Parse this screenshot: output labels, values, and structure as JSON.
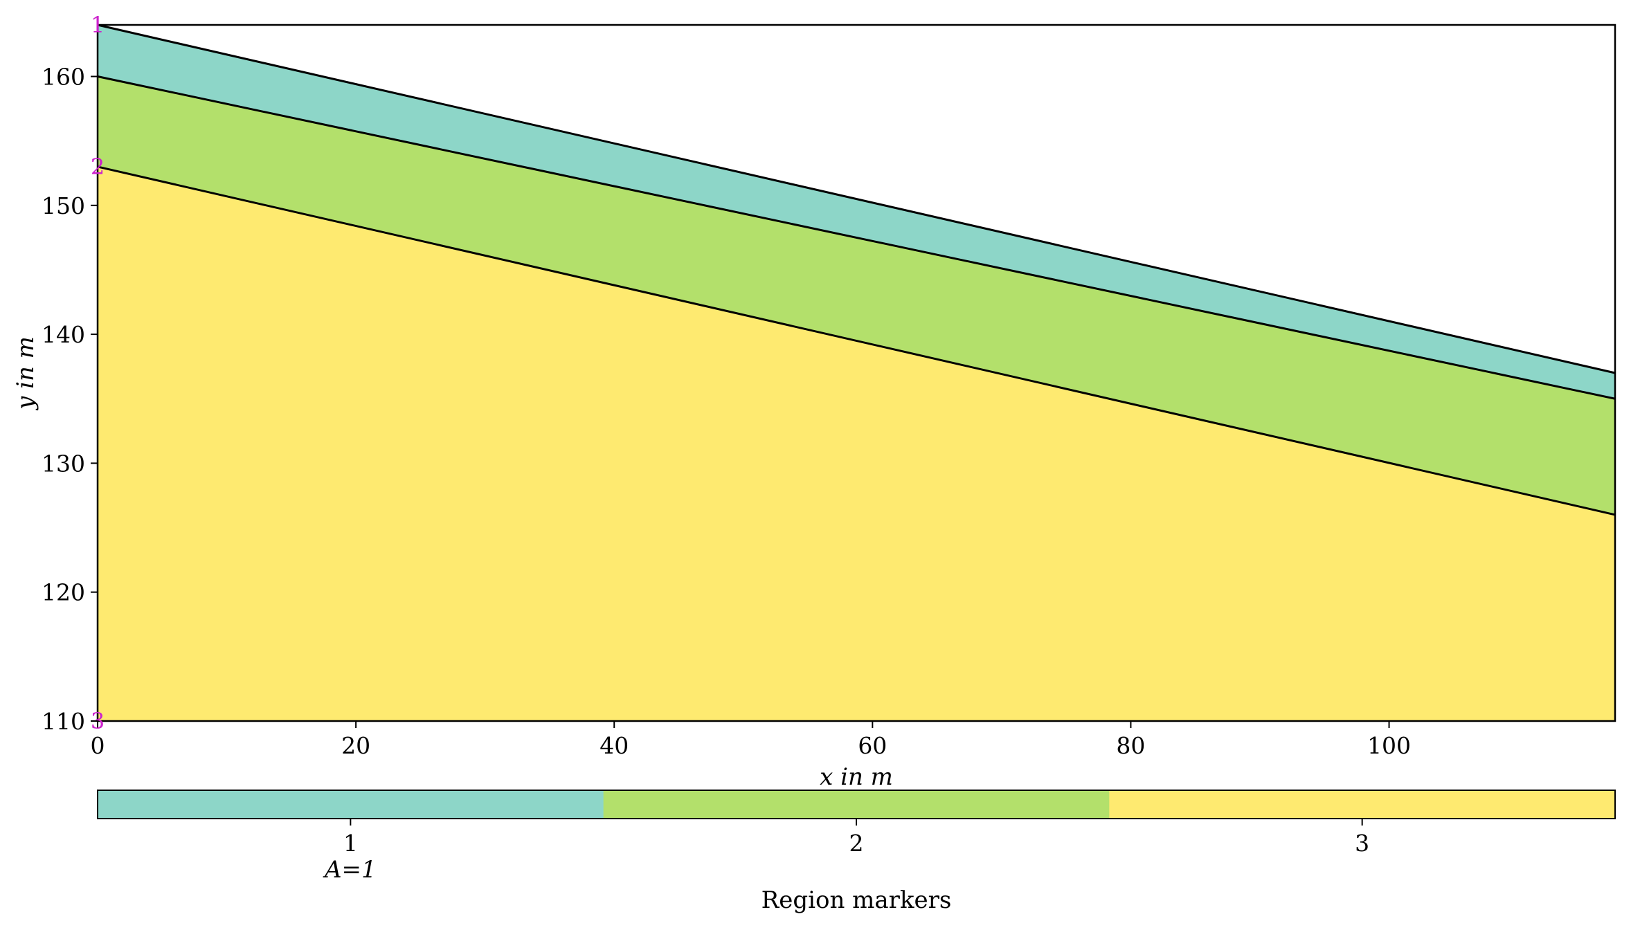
{
  "chart_data": {
    "type": "area",
    "xlabel": "x in m",
    "ylabel": "y in m",
    "xlim": [
      0,
      117.5
    ],
    "ylim": [
      110,
      164
    ],
    "xticks": [
      0,
      20,
      40,
      60,
      80,
      100
    ],
    "yticks": [
      110,
      120,
      130,
      140,
      150,
      160
    ],
    "grid": false,
    "boundaries": [
      {
        "x": [
          0,
          117.5
        ],
        "y": [
          164,
          137
        ]
      },
      {
        "x": [
          0,
          117.5
        ],
        "y": [
          160,
          135
        ]
      },
      {
        "x": [
          0,
          117.5
        ],
        "y": [
          153,
          126
        ]
      }
    ],
    "regions": [
      {
        "marker": 1,
        "color": "#8dd6c8",
        "upper_boundary": 0,
        "lower_boundary": 1
      },
      {
        "marker": 2,
        "color": "#b3e06b",
        "upper_boundary": 1,
        "lower_boundary": 2
      },
      {
        "marker": 3,
        "color": "#feea70",
        "upper_boundary": 2,
        "lower": 110
      }
    ],
    "marker_annotations": [
      {
        "text": "1",
        "x": 0,
        "y": 164
      },
      {
        "text": "2",
        "x": 0,
        "y": 153
      },
      {
        "text": "3",
        "x": 0,
        "y": 110
      }
    ],
    "colorbar": {
      "label": "Region markers",
      "ticks": [
        "1",
        "2",
        "3"
      ],
      "colors": [
        "#8dd6c8",
        "#b3e06b",
        "#feea70"
      ],
      "annotation": "A=1"
    }
  }
}
